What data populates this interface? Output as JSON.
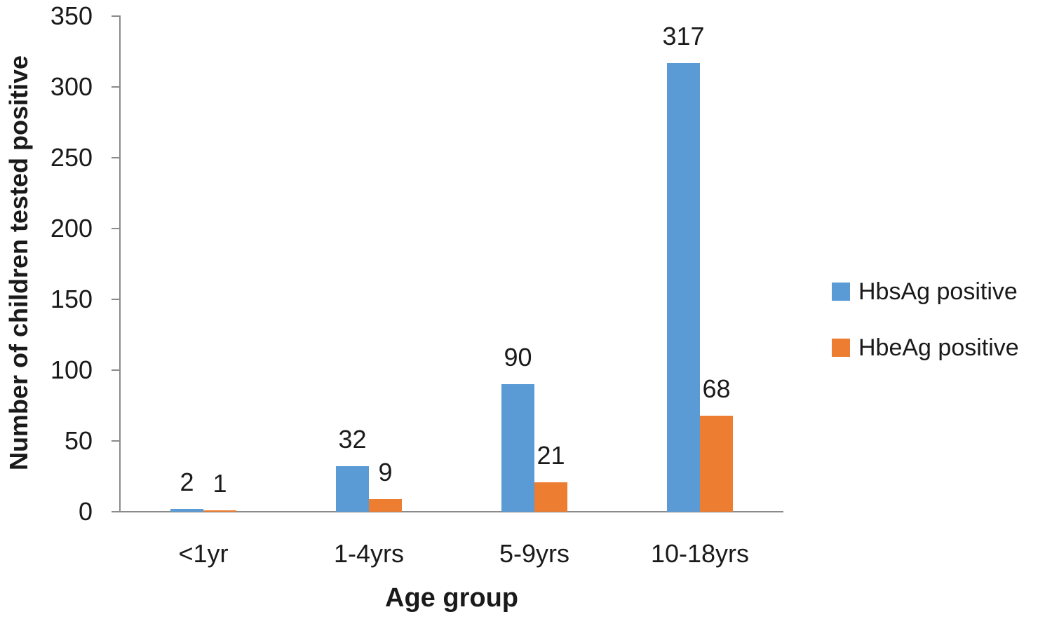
{
  "chart_data": {
    "type": "bar",
    "categories": [
      "<1yr",
      "1-4yrs",
      "5-9yrs",
      "10-18yrs"
    ],
    "series": [
      {
        "name": "HbsAg positive",
        "color": "#5B9BD5",
        "values": [
          2,
          32,
          90,
          317
        ]
      },
      {
        "name": "HbeAg positive",
        "color": "#ED7D31",
        "values": [
          1,
          9,
          21,
          68
        ]
      }
    ],
    "data_labels": [
      [
        "2",
        "32",
        "90",
        "317"
      ],
      [
        "1",
        "9",
        "21",
        "68"
      ]
    ],
    "title": "",
    "xlabel": "Age group",
    "ylabel": "Number of children tested positive",
    "ylim": [
      0,
      350
    ],
    "yticks": [
      0,
      50,
      100,
      150,
      200,
      250,
      300,
      350
    ],
    "grid": false,
    "legend_position": "right",
    "axis_color": "#8a8a8a",
    "text_color": "#1a1a1a",
    "background_color": "#ffffff"
  }
}
